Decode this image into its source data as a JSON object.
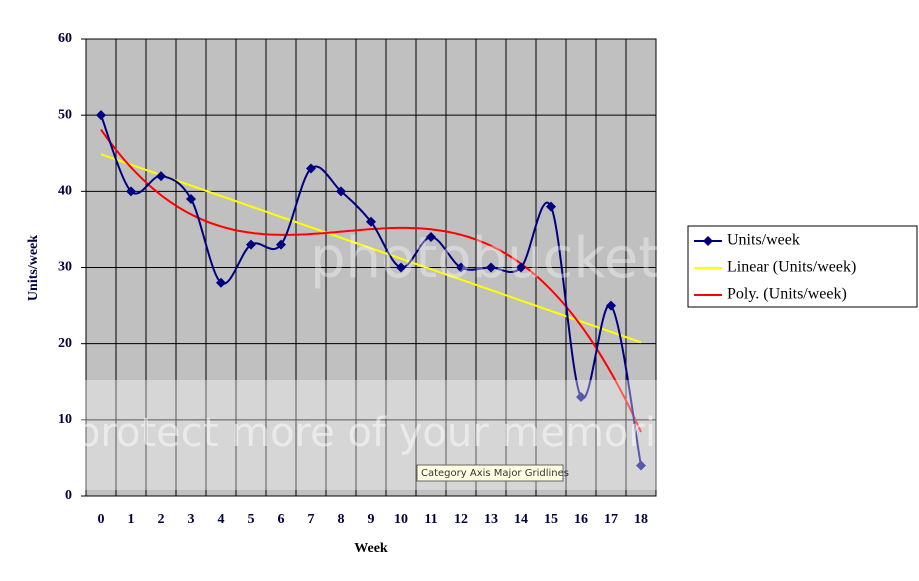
{
  "chart_data": {
    "type": "line",
    "x_label": "Week",
    "y_label": "Units/week",
    "categories": [
      "0",
      "1",
      "2",
      "3",
      "4",
      "5",
      "6",
      "7",
      "8",
      "9",
      "10",
      "11",
      "12",
      "13",
      "14",
      "15",
      "16",
      "17",
      "18"
    ],
    "series": [
      {
        "name": "Units/week",
        "color": "#000080",
        "values": [
          50,
          40,
          42,
          39,
          28,
          33,
          33,
          43,
          40,
          36,
          30,
          34,
          30,
          30,
          30,
          38,
          13,
          25,
          4
        ]
      }
    ],
    "trendlines": [
      {
        "name": "Linear (Units/week)",
        "color": "#ffff00",
        "kind": "linear"
      },
      {
        "name": "Poly. (Units/week)",
        "color": "#ff0000",
        "kind": "poly"
      }
    ],
    "ylim": [
      0,
      60
    ],
    "yticks": [
      0,
      10,
      20,
      30,
      40,
      50,
      60
    ],
    "grid": true,
    "legend": "right",
    "smooth": true
  },
  "watermark": {
    "brand": "photobucket",
    "slogan": "protect more of your memories"
  },
  "tooltip": "Category Axis Major Gridlines"
}
